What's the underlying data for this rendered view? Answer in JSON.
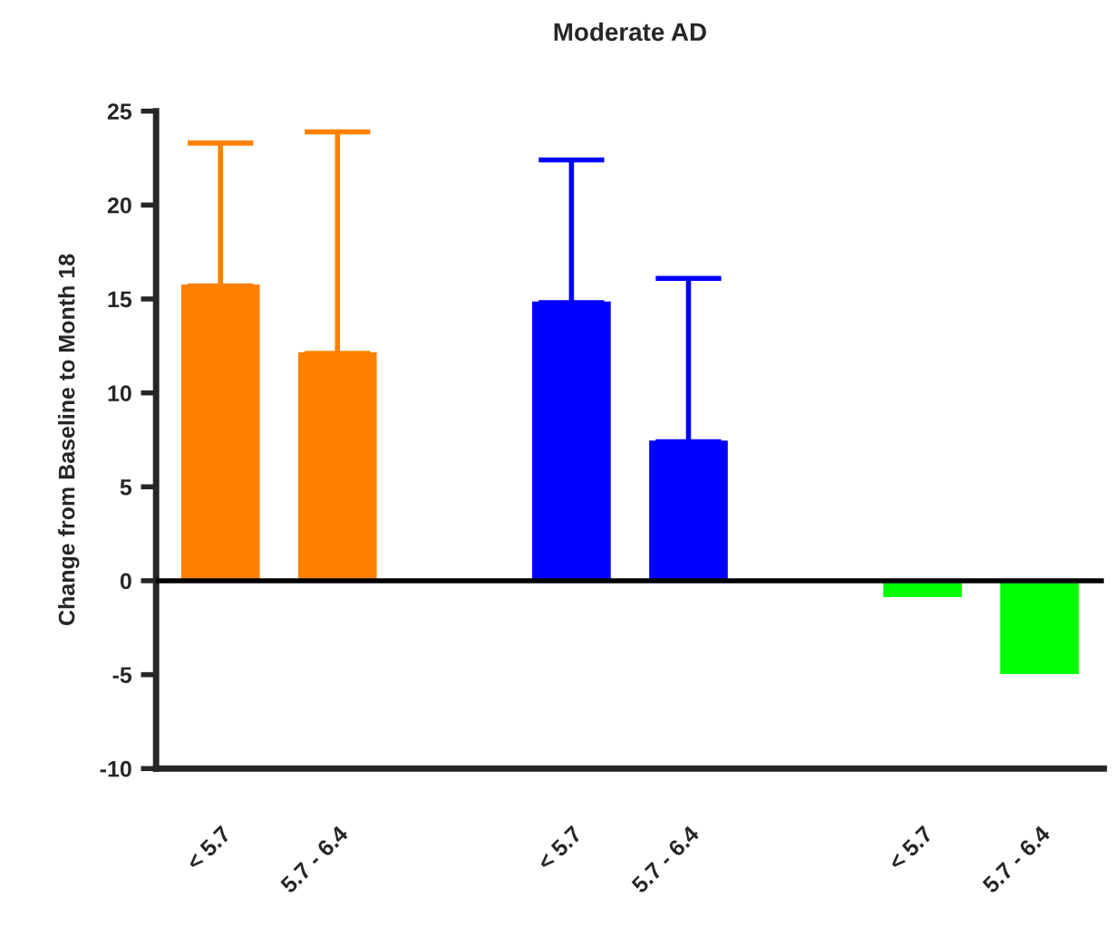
{
  "chart_data": {
    "type": "bar",
    "title": "Moderate AD",
    "ylabel": "Change from Baseline to Month 18",
    "categories": [
      "< 5.7",
      "5.7 - 6.4",
      null,
      "< 5.7",
      "5.7 - 6.4",
      null,
      "< 5.7",
      "5.7 - 6.4"
    ],
    "values": [
      15.7,
      12.1,
      null,
      14.8,
      7.4,
      null,
      -0.8,
      -4.9
    ],
    "colors": [
      "#ff8000",
      "#ff8000",
      null,
      "#0000ff",
      "#0000ff",
      null,
      "#00ff00",
      "#00ff00"
    ],
    "errors": [
      [
        15.7,
        23.3
      ],
      [
        12.1,
        23.9
      ],
      null,
      [
        14.8,
        22.4
      ],
      [
        7.4,
        16.1
      ],
      null,
      null,
      null
    ],
    "ref_lines": [
      {
        "axis": "y",
        "value": 0,
        "color": "#000000"
      }
    ],
    "ylim": [
      -10,
      25
    ],
    "yticks": [
      -10,
      -5,
      0,
      5,
      10,
      15,
      20,
      25
    ],
    "grid": false
  }
}
